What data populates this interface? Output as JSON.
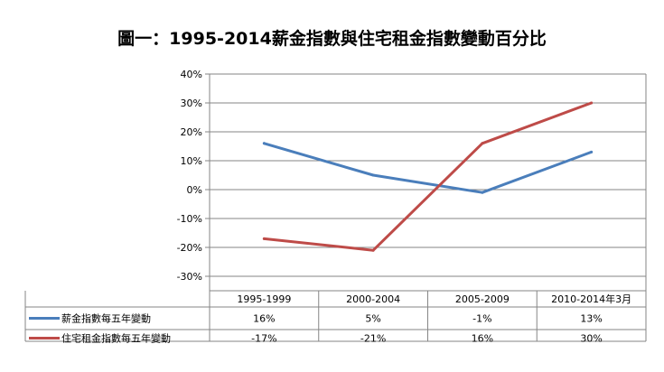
{
  "chart_data": {
    "type": "line",
    "title": "圖一：1995-2014薪金指數與住宅租金指數變動百分比",
    "categories": [
      "1995-1999",
      "2000-2004",
      "2005-2009",
      "2010-2014年3月"
    ],
    "series": [
      {
        "name": "薪金指數每五年變動",
        "values": [
          16,
          5,
          -1,
          13
        ],
        "labels": [
          "16%",
          "5%",
          "-1%",
          "13%"
        ],
        "color": "#4a7ebb"
      },
      {
        "name": "住宅租金指數每五年變動",
        "values": [
          -17,
          -21,
          16,
          30
        ],
        "labels": [
          "-17%",
          "-21%",
          "16%",
          "30%"
        ],
        "color": "#be4b48"
      }
    ],
    "yticks": [
      "40%",
      "30%",
      "20%",
      "10%",
      "0%",
      "-10%",
      "-20%",
      "-30%"
    ],
    "ylim": [
      -30,
      40
    ],
    "grid": true,
    "legend": "data-table"
  }
}
